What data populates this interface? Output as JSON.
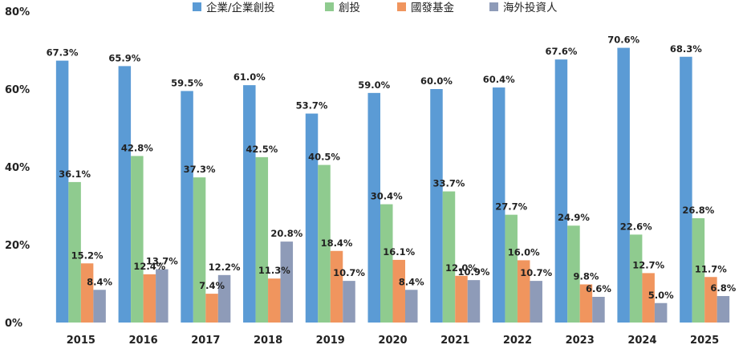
{
  "chart_data": {
    "type": "bar",
    "categories": [
      "2015",
      "2016",
      "2017",
      "2018",
      "2019",
      "2020",
      "2021",
      "2022",
      "2023",
      "2024",
      "2025"
    ],
    "series": [
      {
        "name": "企業/企業創投",
        "color": "#5b9bd5",
        "values": [
          67.3,
          65.9,
          59.5,
          61.0,
          53.7,
          59.0,
          60.0,
          60.4,
          67.6,
          70.6,
          68.3
        ]
      },
      {
        "name": "創投",
        "color": "#8fcb8f",
        "values": [
          36.1,
          42.8,
          37.3,
          42.5,
          40.5,
          30.4,
          33.7,
          27.7,
          24.9,
          22.6,
          26.8
        ]
      },
      {
        "name": "國發基金",
        "color": "#f0955e",
        "values": [
          15.2,
          12.4,
          7.4,
          11.3,
          18.4,
          16.1,
          12.0,
          16.0,
          9.8,
          12.7,
          11.7
        ]
      },
      {
        "name": "海外投資人",
        "color": "#8e9bb8",
        "values": [
          8.4,
          13.7,
          12.2,
          20.8,
          10.7,
          8.4,
          10.9,
          10.7,
          6.6,
          5.0,
          6.8
        ]
      }
    ],
    "labels": [
      [
        "67.3%",
        "65.9%",
        "59.5%",
        "61.0%",
        "53.7%",
        "59.0%",
        "60.0%",
        "60.4%",
        "67.6%",
        "70.6%",
        "68.3%"
      ],
      [
        "36.1%",
        "42.8%",
        "37.3%",
        "42.5%",
        "40.5%",
        "30.4%",
        "33.7%",
        "27.7%",
        "24.9%",
        "22.6%",
        "26.8%"
      ],
      [
        "15.2%",
        "12.4%",
        "7.4%",
        "11.3%",
        "18.4%",
        "16.1%",
        "12.0%",
        "16.0%",
        "9.8%",
        "12.7%",
        "11.7%"
      ],
      [
        "8.4%",
        "13.7%",
        "12.2%",
        "20.8%",
        "10.7%",
        "8.4%",
        "10.9%",
        "10.7%",
        "6.6%",
        "5.0%",
        "6.8%"
      ]
    ],
    "yticks": [
      0,
      20,
      40,
      60,
      80
    ],
    "yticklabels": [
      "0%",
      "20%",
      "40%",
      "60%",
      "80%"
    ],
    "ylim": [
      0,
      80
    ],
    "legend_position": "top",
    "grid": false
  }
}
